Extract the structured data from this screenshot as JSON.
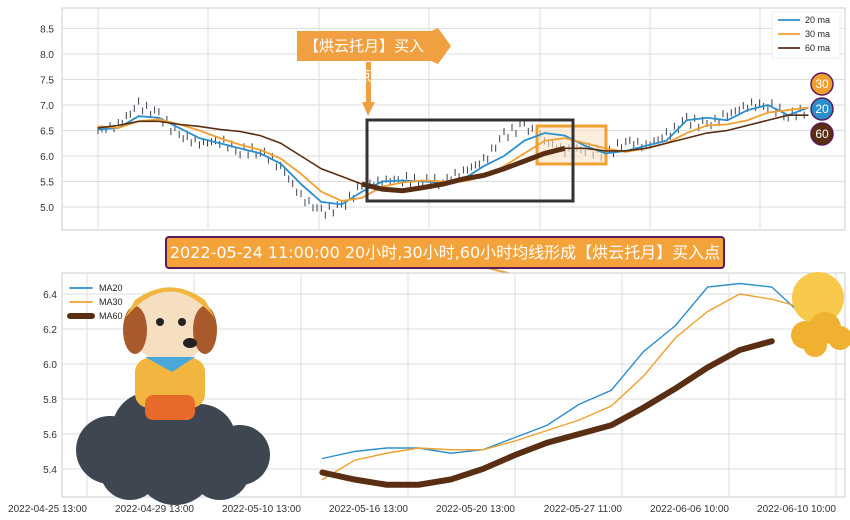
{
  "chart_data": [
    {
      "type": "line",
      "title": "",
      "ylim": [
        4.55,
        8.9
      ],
      "yticks": [
        5.0,
        5.5,
        6.0,
        6.5,
        7.0,
        7.5,
        8.0,
        8.5
      ],
      "grid": true,
      "legend_placement": "top-right",
      "x": [
        0,
        1,
        2,
        3,
        4,
        5,
        6,
        7,
        8,
        9,
        10,
        11,
        12,
        13,
        14,
        15,
        16,
        17,
        18,
        19,
        20,
        21,
        22,
        23,
        24,
        25,
        26,
        27,
        28,
        29,
        30,
        31,
        32,
        33,
        34,
        35
      ],
      "price": [
        6.5,
        6.6,
        7.0,
        6.8,
        6.4,
        6.25,
        6.3,
        6.1,
        6.1,
        5.8,
        5.2,
        4.9,
        5.0,
        5.4,
        5.5,
        5.55,
        5.5,
        5.5,
        5.7,
        5.9,
        6.4,
        6.6,
        6.3,
        6.1,
        6.15,
        6.0,
        6.3,
        6.2,
        6.4,
        6.7,
        6.6,
        6.8,
        7.0,
        7.0,
        6.8,
        6.9
      ],
      "series": [
        {
          "name": "20 ma",
          "color": "#2a8fcf",
          "values": [
            6.52,
            6.55,
            6.78,
            6.75,
            6.55,
            6.35,
            6.25,
            6.15,
            6.05,
            5.85,
            5.45,
            5.1,
            5.05,
            5.3,
            5.5,
            5.52,
            5.5,
            5.48,
            5.55,
            5.8,
            6.0,
            6.3,
            6.45,
            6.4,
            6.2,
            6.05,
            6.1,
            6.2,
            6.3,
            6.7,
            6.75,
            6.7,
            6.9,
            7.0,
            6.8,
            6.95
          ]
        },
        {
          "name": "30 ma",
          "color": "#f0a030",
          "values": [
            6.58,
            6.55,
            6.68,
            6.72,
            6.62,
            6.5,
            6.35,
            6.22,
            6.12,
            5.95,
            5.65,
            5.3,
            5.12,
            5.18,
            5.4,
            5.48,
            5.52,
            5.5,
            5.5,
            5.6,
            5.8,
            6.05,
            6.3,
            6.35,
            6.25,
            6.15,
            6.08,
            6.15,
            6.25,
            6.45,
            6.6,
            6.62,
            6.7,
            6.85,
            6.9,
            6.95
          ]
        },
        {
          "name": "60 ma",
          "color": "#5a2e12",
          "values": [
            6.55,
            6.6,
            6.68,
            6.68,
            6.62,
            6.58,
            6.52,
            6.48,
            6.4,
            6.25,
            6.0,
            5.75,
            5.6,
            5.45,
            5.35,
            5.32,
            5.38,
            5.45,
            5.55,
            5.62,
            5.75,
            5.9,
            6.05,
            6.15,
            6.15,
            6.1,
            6.1,
            6.15,
            6.25,
            6.35,
            6.45,
            6.5,
            6.6,
            6.7,
            6.8,
            6.8
          ]
        }
      ],
      "badges": [
        {
          "label": "30",
          "color": "#f0a030"
        },
        {
          "label": "20",
          "color": "#2a8fcf"
        },
        {
          "label": "60",
          "color": "#5a2e12"
        }
      ],
      "annotation": "【烘云托月】买入点"
    },
    {
      "type": "line",
      "title": "",
      "ylim": [
        5.24,
        6.52
      ],
      "yticks": [
        5.4,
        5.6,
        5.8,
        6.0,
        6.2,
        6.4
      ],
      "xtick_index": [
        0,
        10,
        20,
        30,
        40,
        50,
        60,
        70
      ],
      "xtick_labels": [
        "2022-04-25 13:00",
        "2022-04-29 13:00",
        "2022-05-10 13:00",
        "2022-05-16 13:00",
        "2022-05-20 13:00",
        "2022-05-27 11:00",
        "2022-06-06 10:00",
        "2022-06-10 10:00"
      ],
      "grid": true,
      "legend_placement": "top-left",
      "x": [
        22,
        25,
        28,
        31,
        34,
        37,
        40,
        43,
        46,
        49,
        52,
        55,
        58,
        61,
        64,
        67
      ],
      "series": [
        {
          "name": "MA20",
          "color": "#2a8fcf",
          "values": [
            5.46,
            5.5,
            5.52,
            5.52,
            5.49,
            5.51,
            5.58,
            5.65,
            5.77,
            5.85,
            6.07,
            6.22,
            6.44,
            6.46,
            6.44,
            6.27
          ]
        },
        {
          "name": "MA30",
          "color": "#f0a030",
          "values": [
            5.34,
            5.45,
            5.49,
            5.52,
            5.51,
            5.51,
            5.56,
            5.62,
            5.68,
            5.76,
            5.93,
            6.15,
            6.3,
            6.4,
            6.37,
            6.32
          ]
        },
        {
          "name": "MA60",
          "color": "#5a2e12",
          "values": [
            5.38,
            5.34,
            5.31,
            5.31,
            5.34,
            5.4,
            5.48,
            5.55,
            5.6,
            5.65,
            5.75,
            5.86,
            5.98,
            6.08,
            6.13,
            null
          ]
        }
      ]
    }
  ],
  "banner": "2022-05-24 11:00:00 20小时,30小时,60小时均线形成【烘云托月】买入点"
}
